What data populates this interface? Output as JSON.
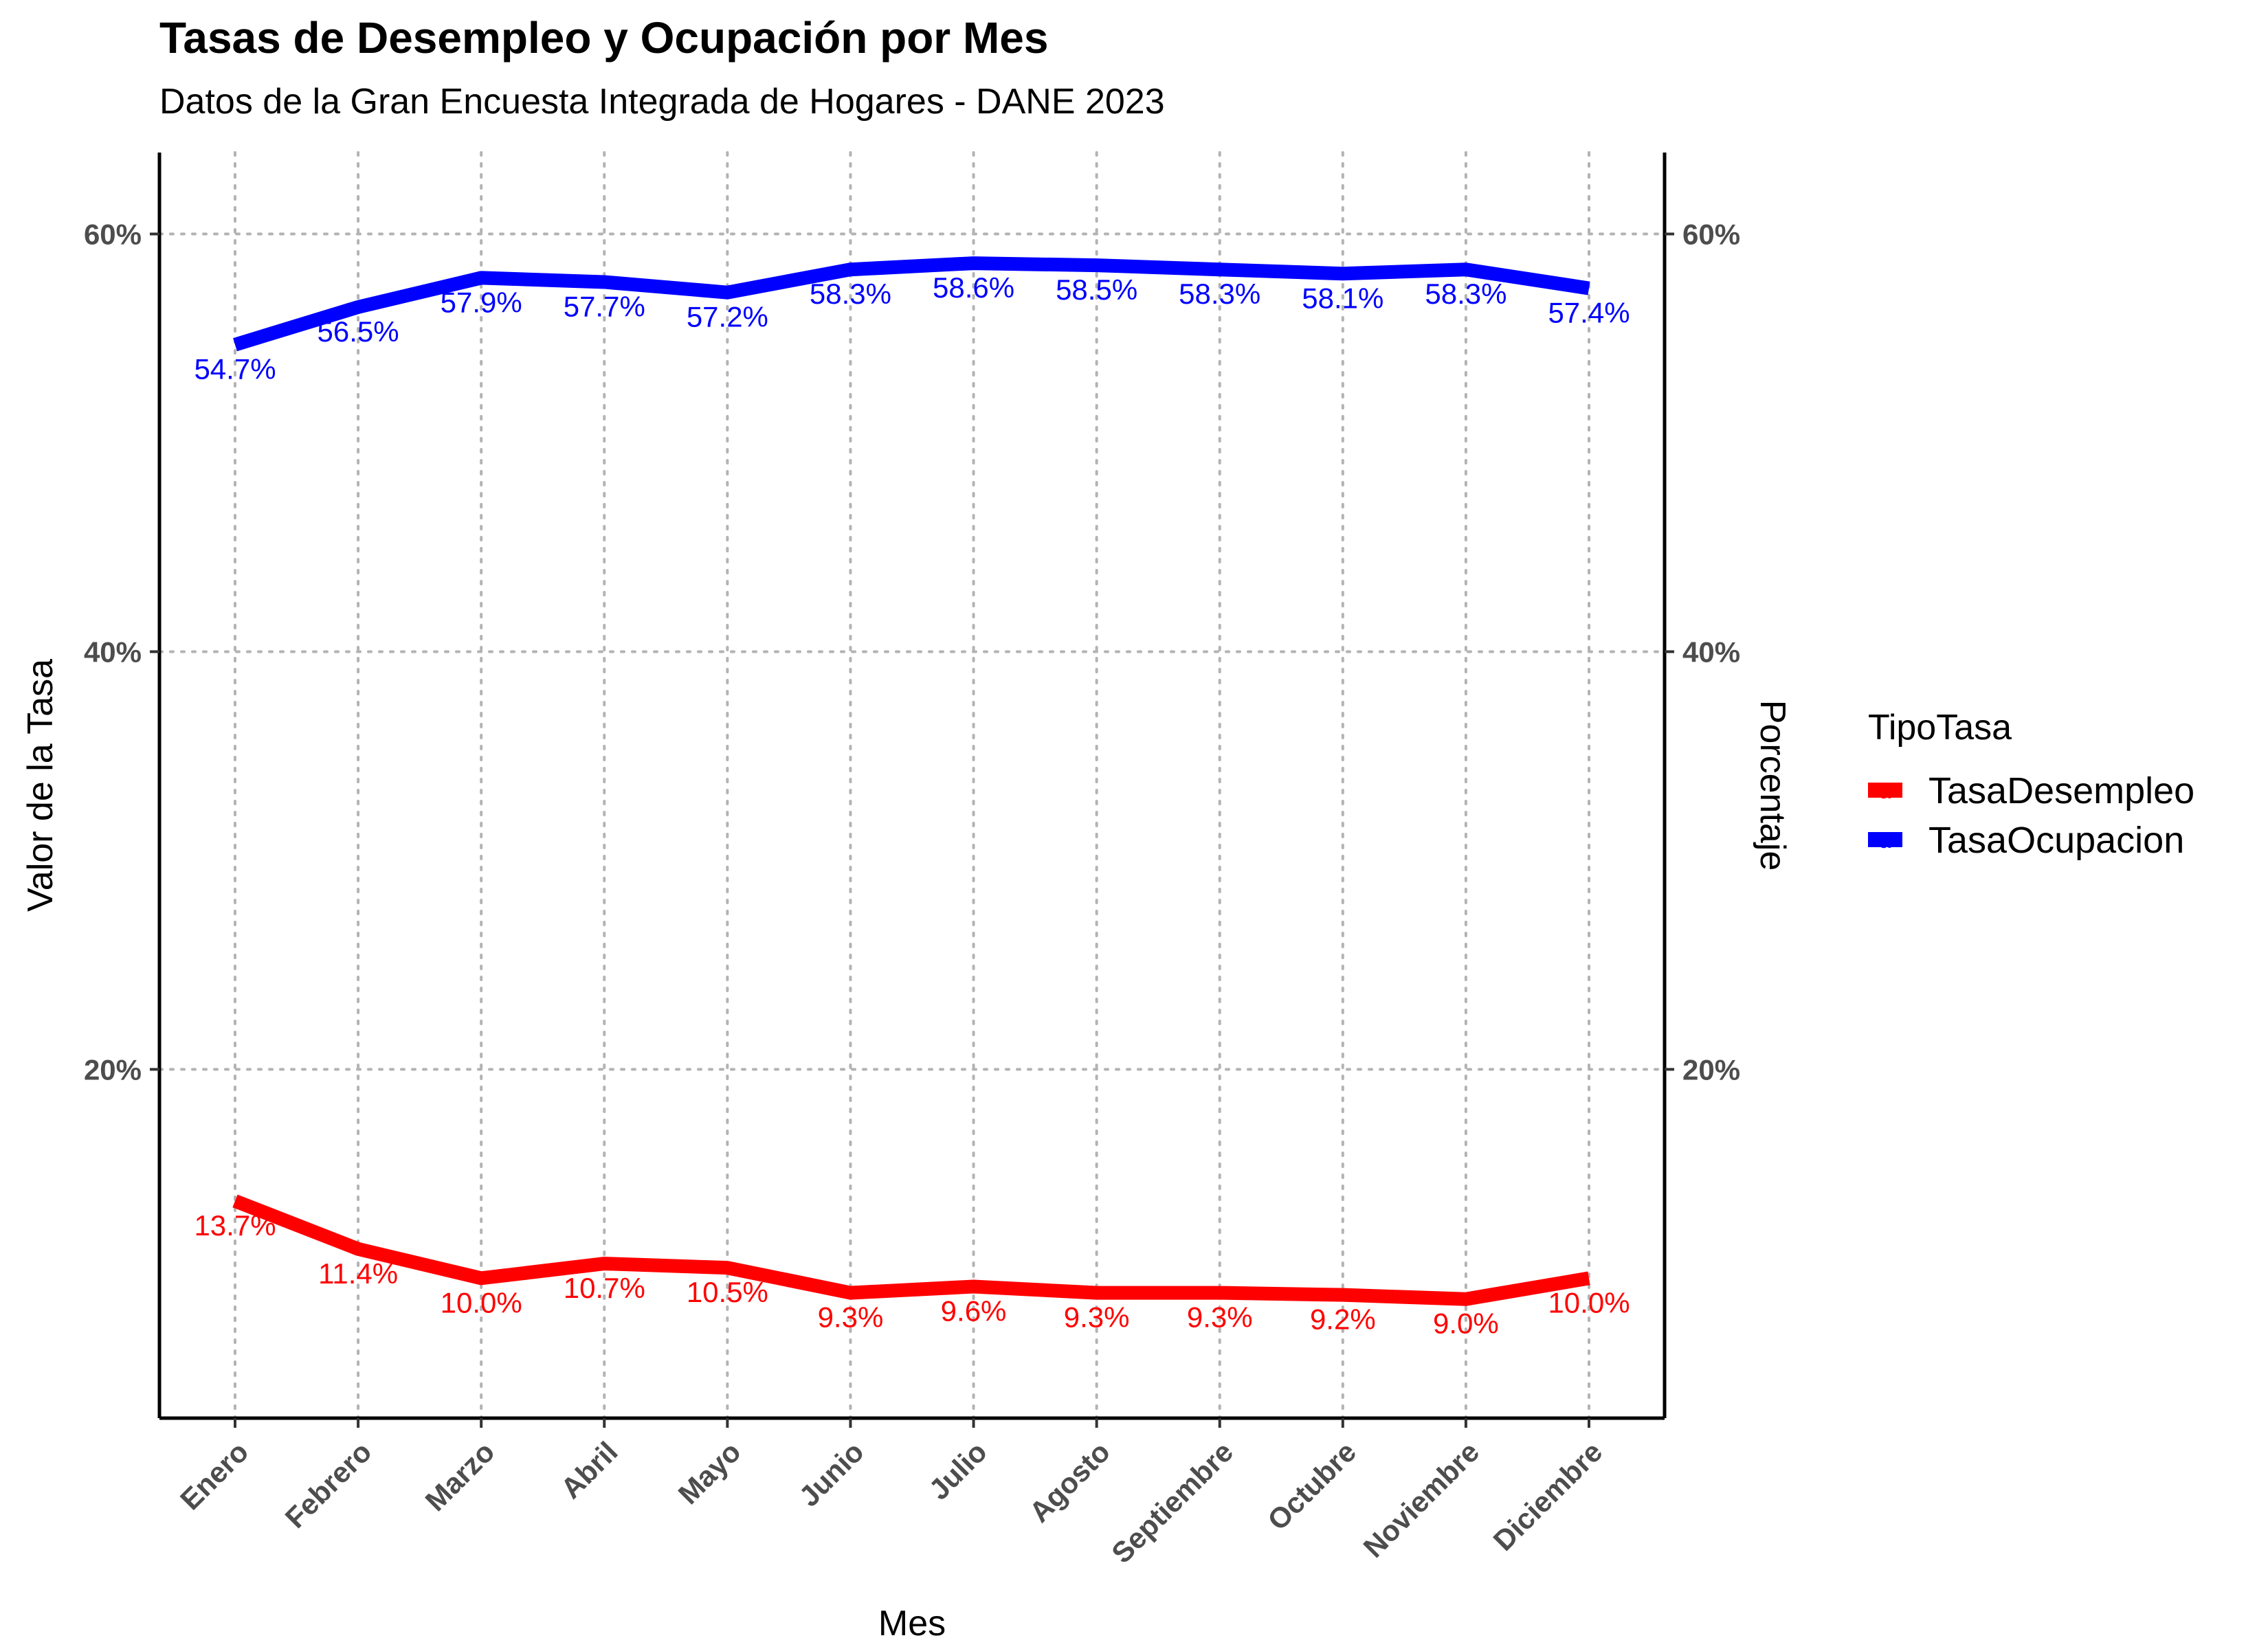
{
  "chart_data": {
    "type": "line",
    "title": "Tasas de Desempleo y Ocupación por Mes",
    "subtitle": "Datos de la Gran Encuesta Integrada de Hogares - DANE 2023",
    "xlabel": "Mes",
    "ylabel": "Valor de la Tasa",
    "ylabel_right": "Porcentaje",
    "categories": [
      "Enero",
      "Febrero",
      "Marzo",
      "Abril",
      "Mayo",
      "Junio",
      "Julio",
      "Agosto",
      "Septiembre",
      "Octubre",
      "Noviembre",
      "Diciembre"
    ],
    "series": [
      {
        "name": "TasaDesempleo",
        "color": "#ff0000",
        "values": [
          13.7,
          11.4,
          10.0,
          10.7,
          10.5,
          9.3,
          9.6,
          9.3,
          9.3,
          9.2,
          9.0,
          10.0
        ],
        "labels": [
          "13.7%",
          "11.4%",
          "10.0%",
          "10.7%",
          "10.5%",
          "9.3%",
          "9.6%",
          "9.3%",
          "9.3%",
          "9.2%",
          "9.0%",
          "10.0%"
        ]
      },
      {
        "name": "TasaOcupacion",
        "color": "#0000ff",
        "values": [
          54.7,
          56.5,
          57.9,
          57.7,
          57.2,
          58.3,
          58.6,
          58.5,
          58.3,
          58.1,
          58.3,
          57.4
        ],
        "labels": [
          "54.7%",
          "56.5%",
          "57.9%",
          "57.7%",
          "57.2%",
          "58.3%",
          "58.6%",
          "58.5%",
          "58.3%",
          "58.1%",
          "58.3%",
          "57.4%"
        ]
      }
    ],
    "yticks": [
      20,
      40,
      60
    ],
    "ytick_labels": [
      "20%",
      "40%",
      "60%"
    ],
    "ylim": [
      3.3,
      63.9
    ],
    "grid": true,
    "grid_style": "dotted",
    "legend": {
      "title": "TipoTasa",
      "placement": "right",
      "key_glyph": "a"
    }
  }
}
